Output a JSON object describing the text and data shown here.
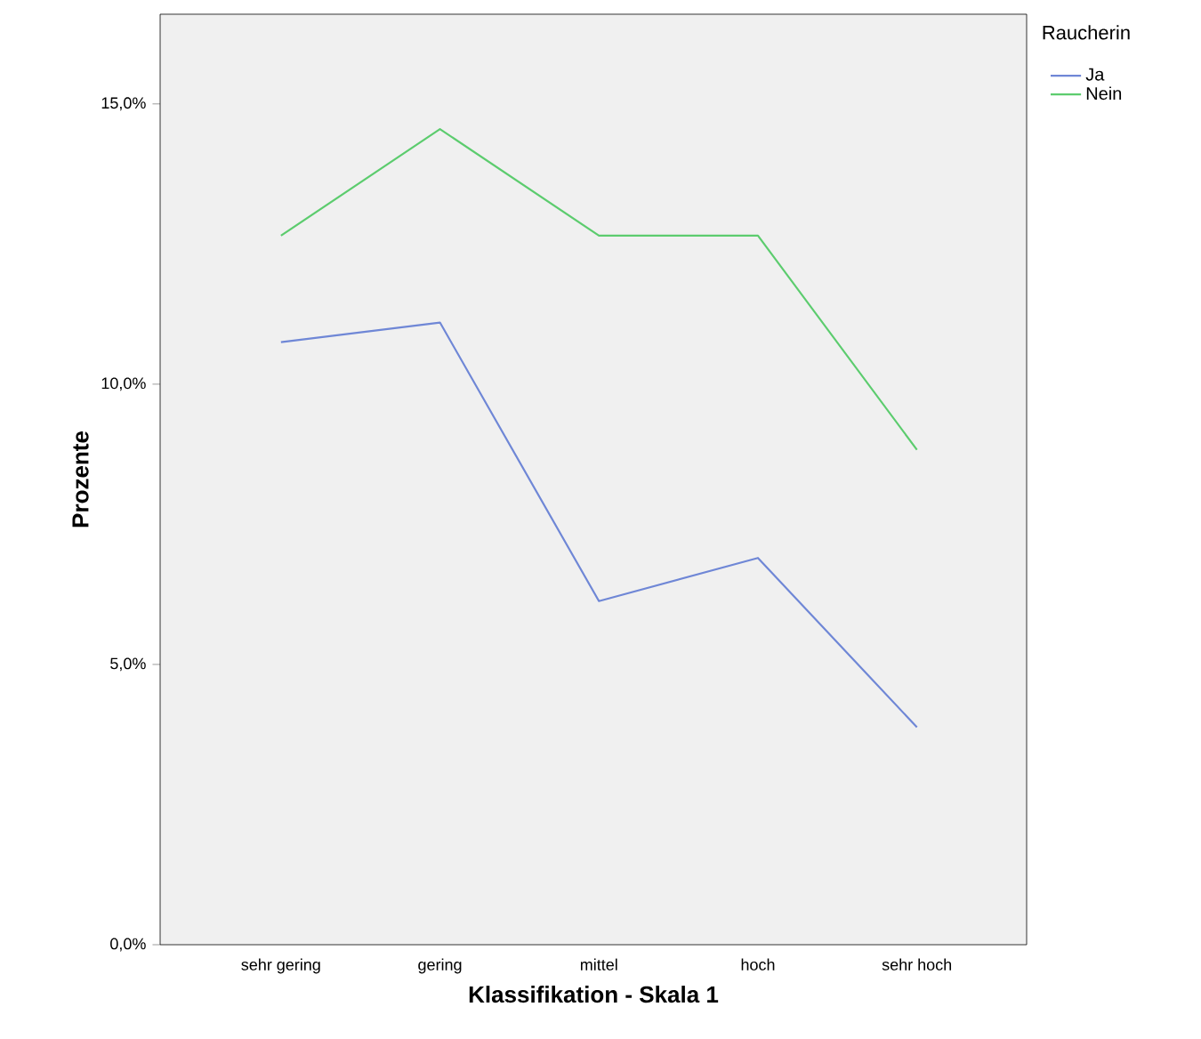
{
  "chart_data": {
    "type": "line",
    "xlabel": "Klassifikation - Skala 1",
    "ylabel": "Prozente",
    "legend_title": "Raucherin",
    "legend": "top right",
    "categories": [
      "sehr gering",
      "gering",
      "mittel",
      "hoch",
      "sehr hoch"
    ],
    "series": [
      {
        "name": "Ja",
        "color": "#6f87d6",
        "values": [
          10.75,
          11.1,
          6.13,
          6.9,
          3.88
        ]
      },
      {
        "name": "Nein",
        "color": "#5ccc6e",
        "values": [
          12.65,
          14.55,
          12.65,
          12.65,
          8.83
        ]
      }
    ],
    "ylim": [
      0,
      16.6
    ],
    "yticks": [
      {
        "value": 0,
        "label": "0,0%"
      },
      {
        "value": 5,
        "label": "5,0%"
      },
      {
        "value": 10,
        "label": "10,0%"
      },
      {
        "value": 15,
        "label": "15,0%"
      }
    ],
    "grid": false,
    "marker": "none",
    "line_style": "solid"
  }
}
